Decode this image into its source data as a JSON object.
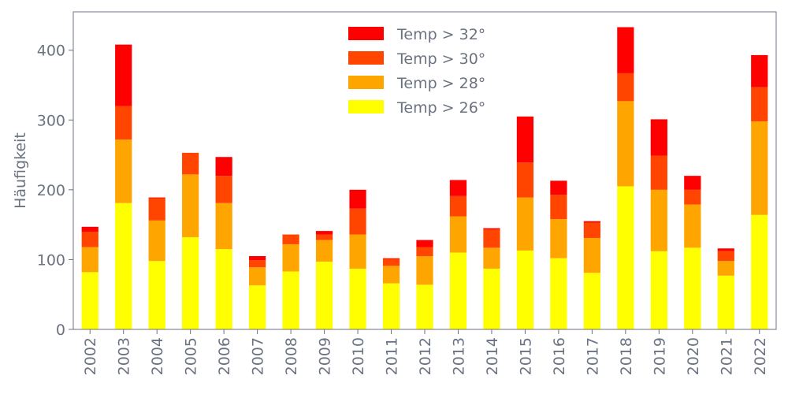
{
  "chart_data": {
    "type": "bar",
    "stacked": true,
    "title": "",
    "xlabel": "",
    "ylabel": "Häufigkeit",
    "ylim": [
      0,
      455
    ],
    "yticks": [
      0,
      100,
      200,
      300,
      400
    ],
    "grid": false,
    "legend_position": "top-center",
    "categories": [
      "2002",
      "2003",
      "2004",
      "2005",
      "2006",
      "2007",
      "2008",
      "2009",
      "2010",
      "2011",
      "2012",
      "2013",
      "2014",
      "2015",
      "2016",
      "2017",
      "2018",
      "2019",
      "2020",
      "2021",
      "2022"
    ],
    "series": [
      {
        "name": "Temp > 26°",
        "color": "#ffff00",
        "values": [
          82,
          181,
          98,
          132,
          115,
          63,
          83,
          97,
          87,
          66,
          64,
          110,
          87,
          113,
          102,
          81,
          205,
          112,
          117,
          77,
          164
        ]
      },
      {
        "name": "Temp > 28°",
        "color": "#ffa500",
        "values": [
          36,
          91,
          58,
          90,
          66,
          26,
          39,
          31,
          49,
          25,
          41,
          52,
          30,
          76,
          56,
          50,
          122,
          88,
          62,
          21,
          134
        ]
      },
      {
        "name": "Temp > 30°",
        "color": "#ff4500",
        "values": [
          22,
          48,
          32,
          31,
          39,
          10,
          14,
          8,
          37,
          10,
          13,
          29,
          26,
          50,
          35,
          22,
          40,
          49,
          21,
          14,
          49
        ]
      },
      {
        "name": "Temp > 32°",
        "color": "#ff0000",
        "values": [
          7,
          88,
          1,
          0,
          27,
          6,
          0,
          5,
          27,
          1,
          10,
          23,
          2,
          66,
          20,
          2,
          66,
          52,
          20,
          4,
          46
        ]
      }
    ]
  }
}
